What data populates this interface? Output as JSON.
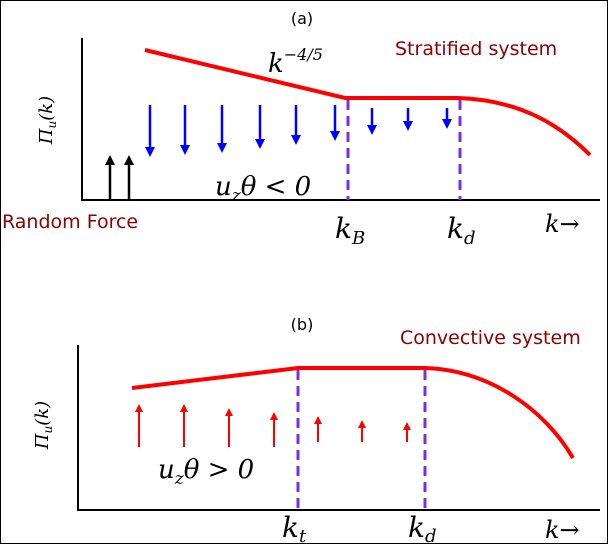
{
  "panels": [
    {
      "label": "(a)",
      "title": "Stratified system",
      "y_label": {
        "base": "Π",
        "sub": "u",
        "tail": "(k)"
      },
      "slope_label": {
        "base": "k",
        "sup": "−4/5"
      },
      "flux_label": {
        "base": "u",
        "sub": "z",
        "tail": "θ < 0"
      },
      "force_label": "Random Force",
      "k_labels": [
        {
          "base": "k",
          "sub": "B"
        },
        {
          "base": "k",
          "sub": "d"
        }
      ],
      "axis_label": "k→"
    },
    {
      "label": "(b)",
      "title": "Convective system",
      "y_label": {
        "base": "Π",
        "sub": "u",
        "tail": "(k)"
      },
      "flux_label": {
        "base": "u",
        "sub": "z",
        "tail": "θ > 0"
      },
      "k_labels": [
        {
          "base": "k",
          "sub": "t"
        },
        {
          "base": "k",
          "sub": "d"
        }
      ],
      "axis_label": "k→"
    }
  ]
}
